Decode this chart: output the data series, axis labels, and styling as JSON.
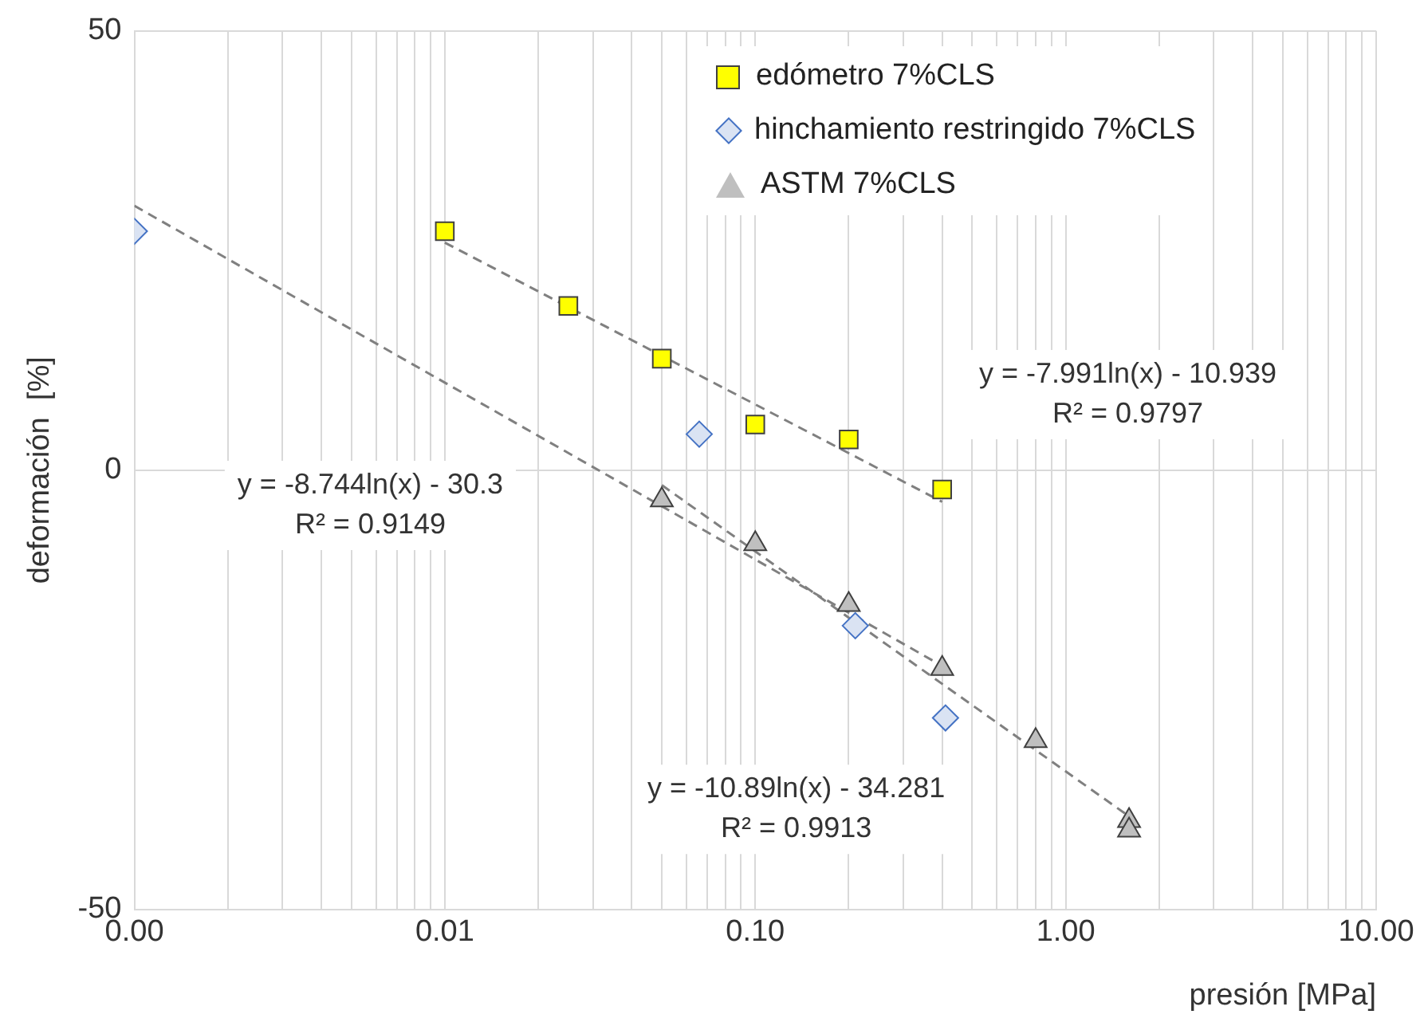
{
  "chart_data": {
    "type": "scatter",
    "xlabel": "presión [MPa]",
    "ylabel": "deformación  [%]",
    "log": "x",
    "grid": true,
    "legend": "top right",
    "xlim": [
      0.001,
      10
    ],
    "xticks": [
      {
        "value": 0.001,
        "label": "0.00"
      },
      {
        "value": 0.002,
        "label": null
      },
      {
        "value": 0.003,
        "label": null
      },
      {
        "value": 0.004,
        "label": null
      },
      {
        "value": 0.005,
        "label": null
      },
      {
        "value": 0.006,
        "label": null
      },
      {
        "value": 0.007,
        "label": null
      },
      {
        "value": 0.008,
        "label": null
      },
      {
        "value": 0.009,
        "label": null
      },
      {
        "value": 0.01,
        "label": "0.01"
      },
      {
        "value": 0.02,
        "label": null
      },
      {
        "value": 0.03,
        "label": null
      },
      {
        "value": 0.04,
        "label": null
      },
      {
        "value": 0.05,
        "label": null
      },
      {
        "value": 0.06,
        "label": null
      },
      {
        "value": 0.07,
        "label": null
      },
      {
        "value": 0.08,
        "label": null
      },
      {
        "value": 0.09,
        "label": null
      },
      {
        "value": 0.1,
        "label": "0.10"
      },
      {
        "value": 0.2,
        "label": null
      },
      {
        "value": 0.3,
        "label": null
      },
      {
        "value": 0.4,
        "label": null
      },
      {
        "value": 0.5,
        "label": null
      },
      {
        "value": 0.6,
        "label": null
      },
      {
        "value": 0.7,
        "label": null
      },
      {
        "value": 0.8,
        "label": null
      },
      {
        "value": 0.9,
        "label": null
      },
      {
        "value": 1,
        "label": "1.00"
      },
      {
        "value": 2,
        "label": null
      },
      {
        "value": 3,
        "label": null
      },
      {
        "value": 4,
        "label": null
      },
      {
        "value": 5,
        "label": null
      },
      {
        "value": 6,
        "label": null
      },
      {
        "value": 7,
        "label": null
      },
      {
        "value": 8,
        "label": null
      },
      {
        "value": 9,
        "label": null
      },
      {
        "value": 10,
        "label": "10.00"
      }
    ],
    "ylim": [
      -50,
      50
    ],
    "yticks": [
      -50,
      0,
      50
    ],
    "series": [
      {
        "name": "edómetro 7%CLS",
        "marker": "square",
        "color": "#ffff00",
        "x": [
          0.01,
          0.025,
          0.05,
          0.1,
          0.2,
          0.4
        ],
        "values": [
          27.2,
          18.7,
          12.7,
          5.2,
          3.5,
          -2.2
        ]
      },
      {
        "name": "hinchamiento restringido 7%CLS",
        "marker": "diamond",
        "color": "#dae3f3",
        "x": [
          0.001,
          0.066,
          0.21,
          0.41
        ],
        "values": [
          27.2,
          4.1,
          -17.7,
          -28.2
        ]
      },
      {
        "name": "ASTM 7%CLS",
        "marker": "triangle",
        "color": "#bfbfbf",
        "x": [
          0.05,
          0.1,
          0.2,
          0.4,
          0.8,
          1.6,
          1.6
        ],
        "values": [
          -3.4,
          -8.4,
          -15.3,
          -22.6,
          -30.8,
          -39.9,
          -41.0
        ]
      },
      {
        "type": "line",
        "marker": "none",
        "line_style": "dashed",
        "color": "#808080",
        "x": [
          0.01,
          0.4
        ],
        "values": [
          25.9,
          -3.6
        ]
      },
      {
        "type": "line",
        "marker": "none",
        "line_style": "dashed",
        "color": "#808080",
        "x": [
          0.001,
          0.41
        ],
        "values": [
          30.1,
          -22.5
        ]
      },
      {
        "type": "line",
        "marker": "none",
        "line_style": "dashed",
        "color": "#808080",
        "x": [
          0.05,
          1.6
        ],
        "values": [
          -1.7,
          -39.4
        ]
      }
    ],
    "annotations": [
      "y = -7.991ln(x) - 10.939\nR² = 0.9797",
      "y = -8.744ln(x) - 30.3\nR² = 0.9149",
      "y = -10.89ln(x) - 34.281\nR² = 0.9913"
    ]
  }
}
